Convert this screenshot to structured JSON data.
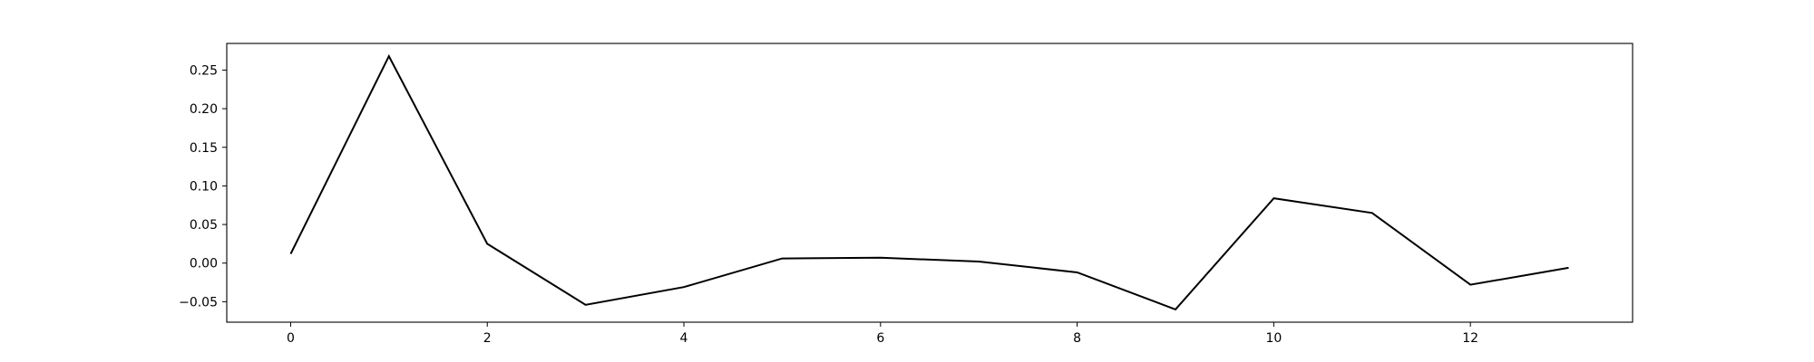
{
  "chart_data": {
    "type": "line",
    "title": "",
    "xlabel": "",
    "ylabel": "",
    "x": [
      0,
      1,
      2,
      3,
      4,
      5,
      6,
      7,
      8,
      9,
      10,
      11,
      12,
      13
    ],
    "series": [
      {
        "values": [
          0.012,
          0.268,
          0.025,
          -0.054,
          -0.031,
          0.006,
          0.007,
          0.002,
          -0.012,
          -0.06,
          0.084,
          0.065,
          -0.028,
          -0.006
        ],
        "color": "#000000"
      }
    ],
    "xlim": [
      -0.65,
      13.65
    ],
    "ylim": [
      -0.0765,
      0.2845
    ],
    "xticks": [
      0,
      2,
      4,
      6,
      8,
      10,
      12
    ],
    "xtick_labels": [
      "0",
      "2",
      "4",
      "6",
      "8",
      "10",
      "12"
    ],
    "yticks": [
      -0.05,
      0.0,
      0.05,
      0.1,
      0.15,
      0.2,
      0.25
    ],
    "ytick_labels": [
      "−0.05",
      "0.00",
      "0.05",
      "0.10",
      "0.15",
      "0.20",
      "0.25"
    ],
    "grid": false,
    "legend": "none"
  }
}
